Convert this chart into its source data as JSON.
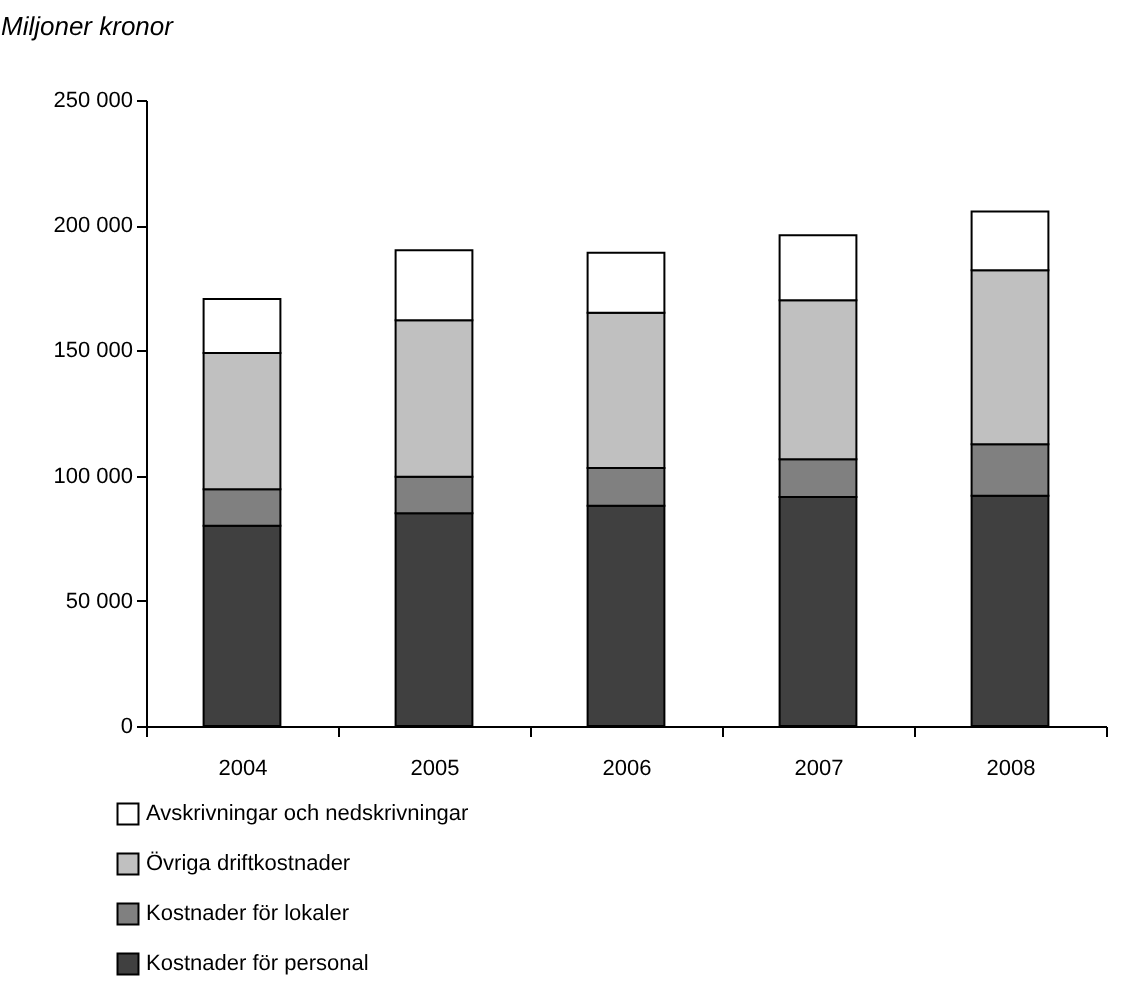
{
  "chart_data": {
    "type": "bar",
    "stacked": true,
    "ylabel": "Miljoner kronor",
    "categories": [
      "2004",
      "2005",
      "2006",
      "2007",
      "2008"
    ],
    "series": [
      {
        "name": "Kostnader för personal",
        "color": "#404040",
        "values": [
          80000,
          85000,
          88000,
          91500,
          92000
        ]
      },
      {
        "name": "Kostnader för lokaler",
        "color": "#808080",
        "values": [
          14500,
          14500,
          15000,
          15000,
          20500
        ]
      },
      {
        "name": "Övriga driftkostnader",
        "color": "#c0c0c0",
        "values": [
          54500,
          62500,
          62000,
          63500,
          69500
        ]
      },
      {
        "name": "Avskrivningar och nedskrivningar",
        "color": "#ffffff",
        "values": [
          21500,
          28000,
          24000,
          26000,
          23500
        ]
      }
    ],
    "ylim": [
      0,
      250000
    ],
    "yticks": [
      {
        "value": 0,
        "label": "0"
      },
      {
        "value": 50000,
        "label": "50 000"
      },
      {
        "value": 100000,
        "label": "100 000"
      },
      {
        "value": 150000,
        "label": "150 000"
      },
      {
        "value": 200000,
        "label": "200 000"
      },
      {
        "value": 250000,
        "label": "250 000"
      }
    ],
    "grid": false,
    "legend": "bottom"
  }
}
